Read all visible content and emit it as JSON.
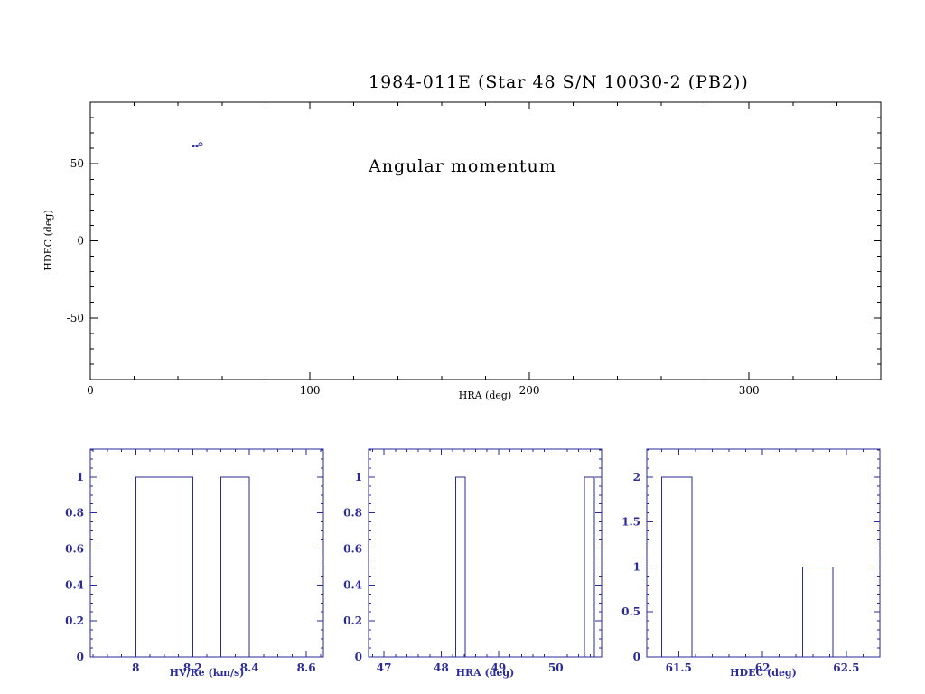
{
  "title": {
    "line1": "1984-011E (Star 48 S/N 10030-2 (PB2))",
    "line2": "Angular momentum"
  },
  "colors": {
    "axis_top": "#000000",
    "axis_hist": "#2a2a9a",
    "point": "#3434a8"
  },
  "chart_data": [
    {
      "type": "scatter",
      "name": "hra-hdec-scatter",
      "xlabel": "HRA (deg)",
      "ylabel": "HDEC (deg)",
      "xlim": [
        0,
        360
      ],
      "ylim": [
        -90,
        90
      ],
      "xticks": [
        0,
        100,
        200,
        300
      ],
      "yticks": [
        -50,
        0,
        50
      ],
      "xminor": 20,
      "yminor": 10,
      "points": [
        [
          47.0,
          61.5
        ],
        [
          48.6,
          61.5
        ]
      ],
      "open_points": [
        [
          50.2,
          62.6
        ]
      ]
    },
    {
      "type": "bar",
      "name": "hv-re-histogram",
      "xlabel": "HV/Re (km/s)",
      "xlim": [
        7.84,
        8.66
      ],
      "ylim": [
        0,
        1.155
      ],
      "xticks": [
        8,
        8.2,
        8.4,
        8.6
      ],
      "yticks": [
        0,
        0.2,
        0.4,
        0.6,
        0.8,
        1
      ],
      "xminor": 0.05,
      "yminor": 0.05,
      "bars": [
        {
          "x0": 8.0,
          "x1": 8.2,
          "h": 1
        },
        {
          "x0": 8.3,
          "x1": 8.4,
          "h": 1
        }
      ]
    },
    {
      "type": "bar",
      "name": "hra-histogram",
      "xlabel": "HRA (deg)",
      "xlim": [
        46.73,
        50.8
      ],
      "ylim": [
        0,
        1.155
      ],
      "xticks": [
        47,
        48,
        49,
        50
      ],
      "yticks": [
        0,
        0.2,
        0.4,
        0.6,
        0.8,
        1
      ],
      "xminor": 0.2,
      "yminor": 0.05,
      "bars": [
        {
          "x0": 48.25,
          "x1": 48.42,
          "h": 1
        },
        {
          "x0": 50.5,
          "x1": 50.67,
          "h": 1
        }
      ]
    },
    {
      "type": "bar",
      "name": "hdec-histogram",
      "xlabel": "HDEC (deg)",
      "xlim": [
        61.31,
        62.7
      ],
      "ylim": [
        0,
        2.31
      ],
      "xticks": [
        61.5,
        62,
        62.5
      ],
      "yticks": [
        0,
        0.5,
        1,
        1.5,
        2
      ],
      "xminor": 0.1,
      "yminor": 0.1,
      "bars": [
        {
          "x0": 61.4,
          "x1": 61.58,
          "h": 2
        },
        {
          "x0": 62.24,
          "x1": 62.42,
          "h": 1
        }
      ]
    }
  ]
}
